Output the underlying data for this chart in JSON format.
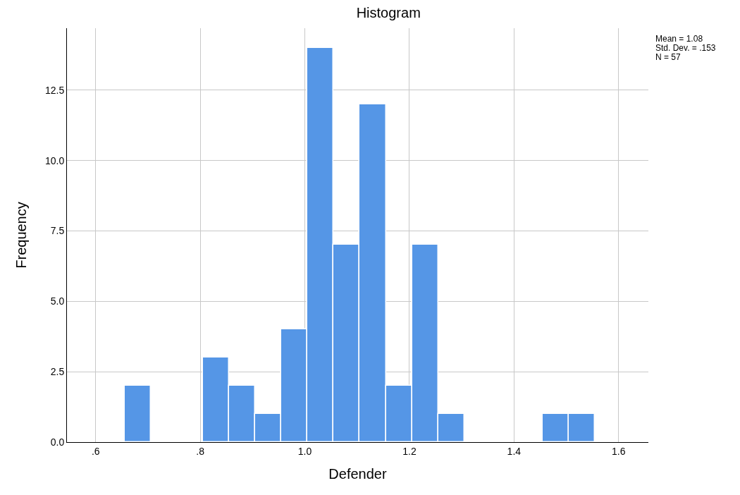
{
  "chart_data": {
    "type": "histogram",
    "title": "Histogram",
    "xlabel": "Defender",
    "ylabel": "Frequency",
    "bins": [
      0.655,
      0.705,
      0.755,
      0.805,
      0.855,
      0.905,
      0.955,
      1.005,
      1.055,
      1.105,
      1.155,
      1.205,
      1.255,
      1.305,
      1.355,
      1.405,
      1.455,
      1.505,
      1.555
    ],
    "values": [
      2,
      0,
      0,
      3,
      2,
      1,
      4,
      14,
      7,
      12,
      2,
      7,
      1,
      0,
      0,
      0,
      1,
      1
    ],
    "color": "#5596e6",
    "xlim": [
      0.545,
      1.657
    ],
    "xticks": [
      {
        "value": 0.6,
        "label": ".6"
      },
      {
        "value": 0.8,
        "label": ".8"
      },
      {
        "value": 1.0,
        "label": "1.0"
      },
      {
        "value": 1.2,
        "label": "1.2"
      },
      {
        "value": 1.4,
        "label": "1.4"
      },
      {
        "value": 1.6,
        "label": "1.6"
      }
    ],
    "ylim": [
      0,
      14.7
    ],
    "yticks": [
      {
        "value": 0,
        "label": "0.0"
      },
      2.5,
      {
        "value": 5,
        "label": "5.0"
      },
      7.5,
      {
        "value": 10,
        "label": "10.0"
      },
      12.5
    ],
    "grid": true,
    "annotations": [
      "Mean = 1.08",
      "Std. Dev. = .153",
      "N = 57"
    ]
  }
}
